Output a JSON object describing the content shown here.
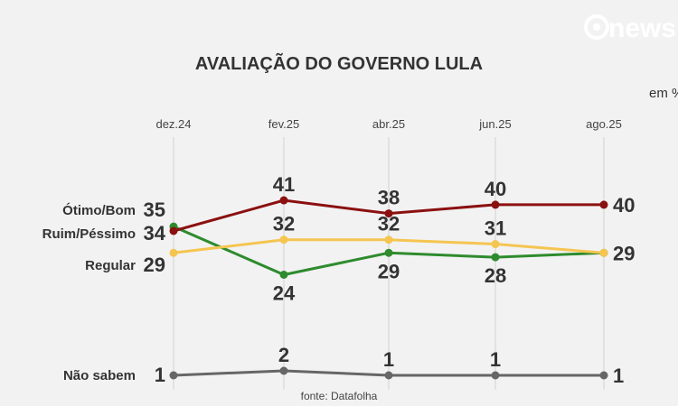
{
  "logo": "news",
  "unit_label": "em %",
  "chart_data": {
    "type": "line",
    "title": "AVALIAÇÃO DO GOVERNO LULA",
    "categories": [
      "dez.24",
      "fev.25",
      "abr.25",
      "jun.25",
      "ago.25"
    ],
    "series": [
      {
        "name": "Ótimo/Bom",
        "color": "#2e8b2e",
        "values": [
          35,
          24,
          29,
          28,
          29
        ],
        "label_pos": "below"
      },
      {
        "name": "Ruim/Péssimo",
        "color": "#8b1010",
        "values": [
          34,
          41,
          38,
          40,
          40
        ],
        "label_pos": "above"
      },
      {
        "name": "Regular",
        "color": "#f5c550",
        "values": [
          29,
          32,
          32,
          31,
          29
        ],
        "label_pos": "above"
      },
      {
        "name": "Não sabem",
        "color": "#666666",
        "values": [
          1,
          2,
          1,
          1,
          1
        ],
        "label_pos": "above"
      }
    ],
    "source": "fonte: Datafolha",
    "xlabel": "",
    "ylabel": "",
    "grid": "vertical"
  }
}
